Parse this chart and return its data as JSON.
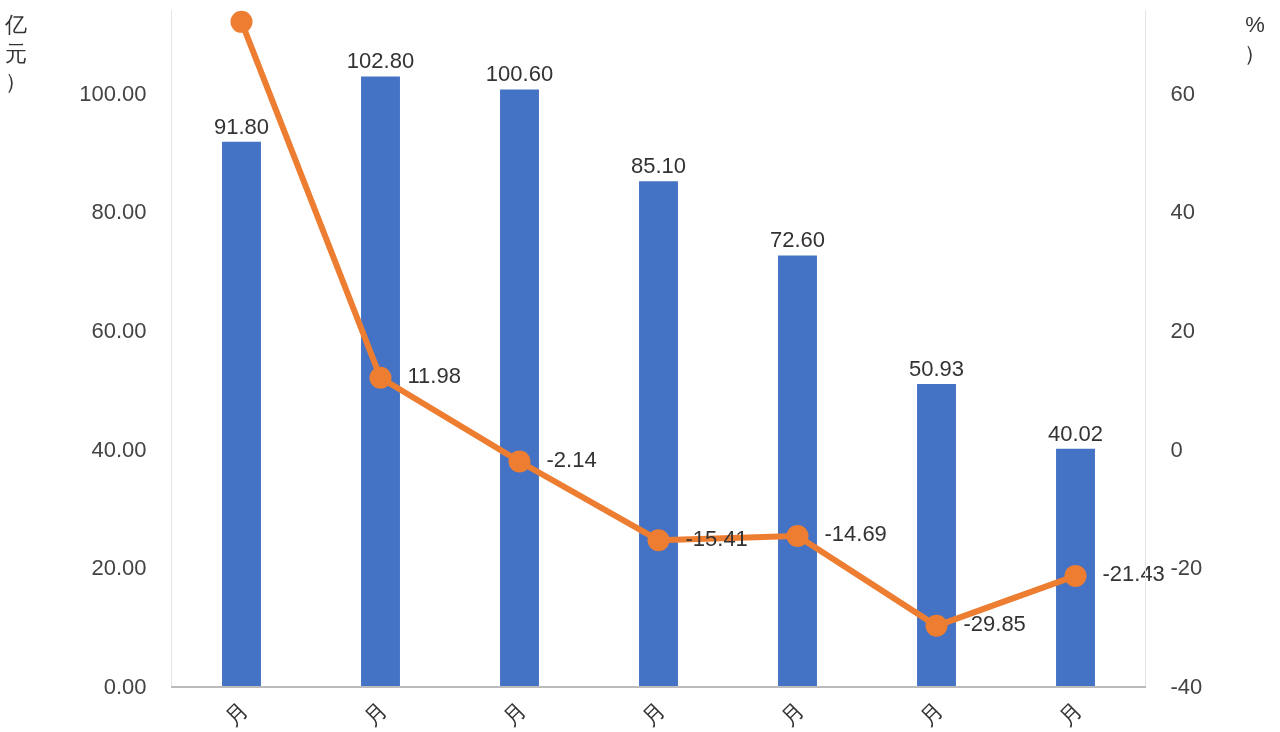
{
  "chart_data": {
    "type": "bar",
    "categories": [
      "月",
      "月",
      "月",
      "月",
      "月",
      "月",
      "月"
    ],
    "ylabel": "亿元）",
    "y2label": "%）",
    "series": [
      {
        "color": "#4472c4",
        "values": [
          91.8,
          102.8,
          100.6,
          85.1,
          72.6,
          50.93,
          40.02
        ],
        "value_labels": [
          "91.80",
          "102.80",
          "100.60",
          "85.10",
          "72.60",
          "50.93",
          "40.02"
        ]
      },
      {
        "type": "line",
        "axis": "y2",
        "color": "#ed7d31",
        "values": [
          72,
          11.98,
          -2.14,
          -15.41,
          -14.69,
          -29.85,
          -21.43
        ],
        "value_labels": [
          null,
          "11.98",
          "-2.14",
          "-15.41",
          "-14.69",
          "-29.85",
          "-21.43"
        ]
      }
    ],
    "ylim": [
      0,
      114
    ],
    "yticks": [
      {
        "value": 0,
        "label": "0.00"
      },
      {
        "value": 20,
        "label": "20.00"
      },
      {
        "value": 40,
        "label": "40.00"
      },
      {
        "value": 60,
        "label": "60.00"
      },
      {
        "value": 80,
        "label": "80.00"
      },
      {
        "value": 100,
        "label": "100.00"
      }
    ],
    "y2lim": [
      -40,
      74
    ],
    "y2ticks": [
      -40,
      -20,
      0,
      20,
      40,
      60
    ],
    "grid": false,
    "marker": "circle",
    "line_style": "solid"
  }
}
